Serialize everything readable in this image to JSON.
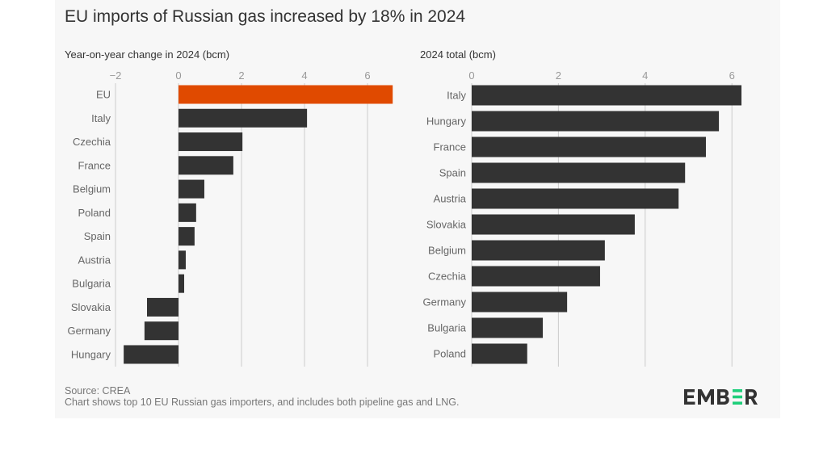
{
  "title": "EU imports of Russian gas increased by 18% in 2024",
  "footer": {
    "source": "Source: CREA",
    "note": "Chart shows top 10 EU Russian gas importers, and includes both pipeline gas and LNG."
  },
  "logo": "EMBER",
  "colors": {
    "highlight": "#e04a00",
    "bar": "#333333",
    "logo_accent": "#1ecf7a"
  },
  "chart_data": [
    {
      "type": "bar",
      "orientation": "horizontal",
      "title": "Year-on-year change in 2024 (bcm)",
      "categories": [
        "EU",
        "Italy",
        "Czechia",
        "France",
        "Belgium",
        "Poland",
        "Spain",
        "Austria",
        "Bulgaria",
        "Slovakia",
        "Germany",
        "Hungary"
      ],
      "values": [
        6.8,
        4.08,
        2.03,
        1.74,
        0.82,
        0.56,
        0.51,
        0.23,
        0.18,
        -1.0,
        -1.08,
        -1.74
      ],
      "highlight": "EU",
      "xlim": [
        -2,
        6.8
      ],
      "ticks": [
        -2,
        0,
        2,
        4,
        6
      ],
      "tick_labels": [
        "−2",
        "0",
        "2",
        "4",
        "6"
      ],
      "grid": true
    },
    {
      "type": "bar",
      "orientation": "horizontal",
      "title": "2024 total (bcm)",
      "categories": [
        "Italy",
        "Hungary",
        "France",
        "Spain",
        "Austria",
        "Slovakia",
        "Belgium",
        "Czechia",
        "Germany",
        "Bulgaria",
        "Poland"
      ],
      "values": [
        6.22,
        5.7,
        5.4,
        4.92,
        4.77,
        3.76,
        3.07,
        2.96,
        2.2,
        1.64,
        1.28
      ],
      "xlim": [
        0,
        6.3
      ],
      "ticks": [
        0,
        2,
        4,
        6
      ],
      "tick_labels": [
        "0",
        "2",
        "4",
        "6"
      ],
      "grid": true
    }
  ]
}
